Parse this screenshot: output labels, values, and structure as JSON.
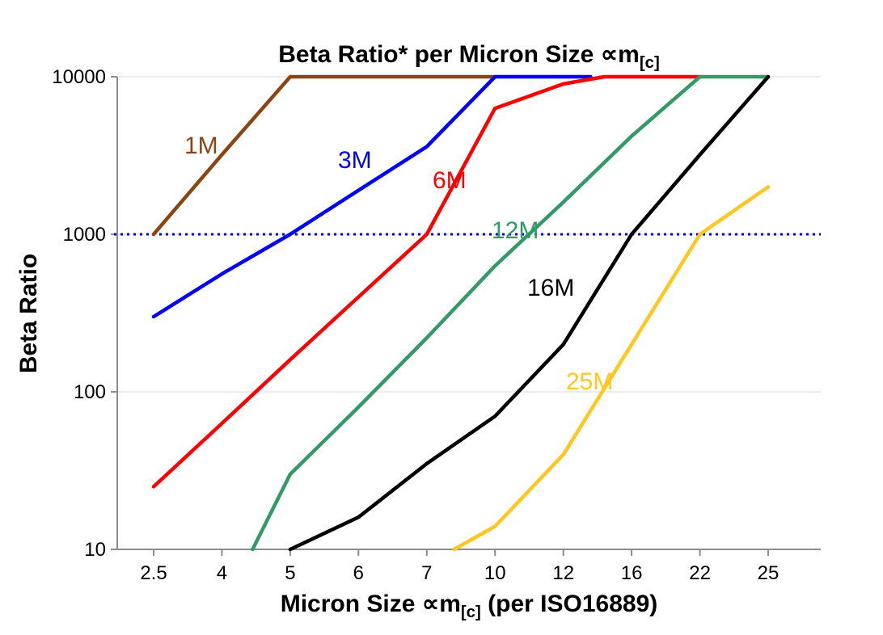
{
  "title": {
    "main": "Beta Ratio* per Micron Size ",
    "symbol": "∝m",
    "sub": "[c]"
  },
  "ylabel": "Beta Ratio",
  "xlabel": {
    "main": "Micron Size ",
    "symbol": "∝m",
    "sub": "[c]",
    "rest": " (per ISO16889)"
  },
  "chart_data": {
    "type": "line",
    "x_categories": [
      "2.5",
      "4",
      "5",
      "6",
      "7",
      "10",
      "12",
      "16",
      "22",
      "25"
    ],
    "x_note": "categorical, evenly spaced; series points are [x_index, beta_ratio], fractional index = between ticks",
    "y_scale": "log",
    "ylim": [
      10,
      10000
    ],
    "y_ticks": [
      10,
      100,
      1000,
      10000
    ],
    "grid": "horizontal",
    "reference_line": {
      "y": 1000,
      "color": "#0000ee",
      "style": "dotted"
    },
    "series": [
      {
        "name": "1M",
        "color": "#8B4513",
        "label_pos": [
          228,
          190
        ],
        "points": [
          [
            0,
            1000
          ],
          [
            1,
            3200
          ],
          [
            2,
            10000
          ],
          [
            5,
            10000
          ]
        ]
      },
      {
        "name": "3M",
        "color": "#0000FF",
        "label_pos": [
          418,
          208
        ],
        "points": [
          [
            0,
            300
          ],
          [
            1,
            560
          ],
          [
            2,
            1000
          ],
          [
            3,
            1900
          ],
          [
            4,
            3600
          ],
          [
            5,
            10000
          ],
          [
            6.4,
            10000
          ]
        ]
      },
      {
        "name": "6M",
        "color": "#FF0000",
        "label_pos": [
          535,
          233
        ],
        "points": [
          [
            0,
            25
          ],
          [
            1,
            63
          ],
          [
            2,
            160
          ],
          [
            3,
            400
          ],
          [
            4,
            1000
          ],
          [
            5,
            6300
          ],
          [
            6,
            9000
          ],
          [
            6.6,
            10000
          ],
          [
            8,
            10000
          ]
        ]
      },
      {
        "name": "12M",
        "color": "#339966",
        "label_pos": [
          608,
          295
        ],
        "points": [
          [
            1.45,
            10
          ],
          [
            2,
            30
          ],
          [
            3,
            80
          ],
          [
            4,
            220
          ],
          [
            5,
            630
          ],
          [
            6,
            1600
          ],
          [
            7,
            4200
          ],
          [
            8,
            10000
          ],
          [
            9,
            10000
          ]
        ]
      },
      {
        "name": "16M",
        "color": "#000000",
        "label_pos": [
          652,
          366
        ],
        "points": [
          [
            2,
            10
          ],
          [
            3,
            16
          ],
          [
            4,
            35
          ],
          [
            5,
            70
          ],
          [
            6,
            200
          ],
          [
            7,
            1000
          ],
          [
            8,
            3200
          ],
          [
            9,
            10000
          ]
        ]
      },
      {
        "name": "25M",
        "color": "#FFC71F",
        "label_pos": [
          700,
          482
        ],
        "points": [
          [
            4.4,
            10
          ],
          [
            5,
            14
          ],
          [
            6,
            40
          ],
          [
            7,
            200
          ],
          [
            8,
            1000
          ],
          [
            9,
            2000
          ]
        ]
      }
    ]
  }
}
